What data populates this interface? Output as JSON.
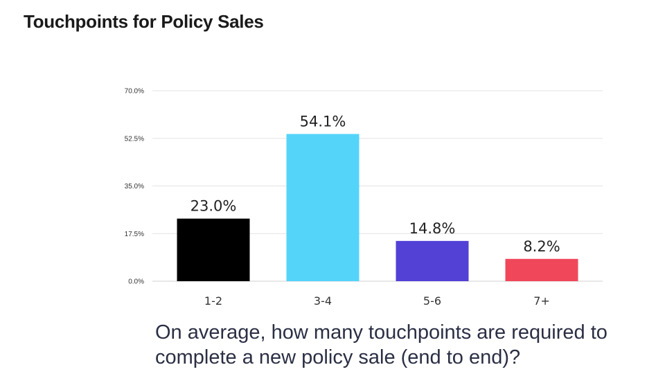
{
  "title": "Touchpoints for Policy Sales",
  "question": "On average, how many touchpoints are required to complete a new policy sale (end to end)?",
  "chart_data": {
    "type": "bar",
    "categories": [
      "1-2",
      "3-4",
      "5-6",
      "7+"
    ],
    "values": [
      23.0,
      54.1,
      14.8,
      8.2
    ],
    "data_labels": [
      "23.0%",
      "54.1%",
      "14.8%",
      "8.2%"
    ],
    "colors": [
      "#000000",
      "#55d4fa",
      "#5341d6",
      "#f0475b"
    ],
    "ylim": [
      0,
      70
    ],
    "yticks": [
      0,
      17.5,
      35,
      52.5,
      70
    ],
    "ytick_labels": [
      "0.0%",
      "17.5%",
      "35.0%",
      "52.5%",
      "70.0%"
    ],
    "grid": true,
    "xlabel": "",
    "ylabel": ""
  }
}
